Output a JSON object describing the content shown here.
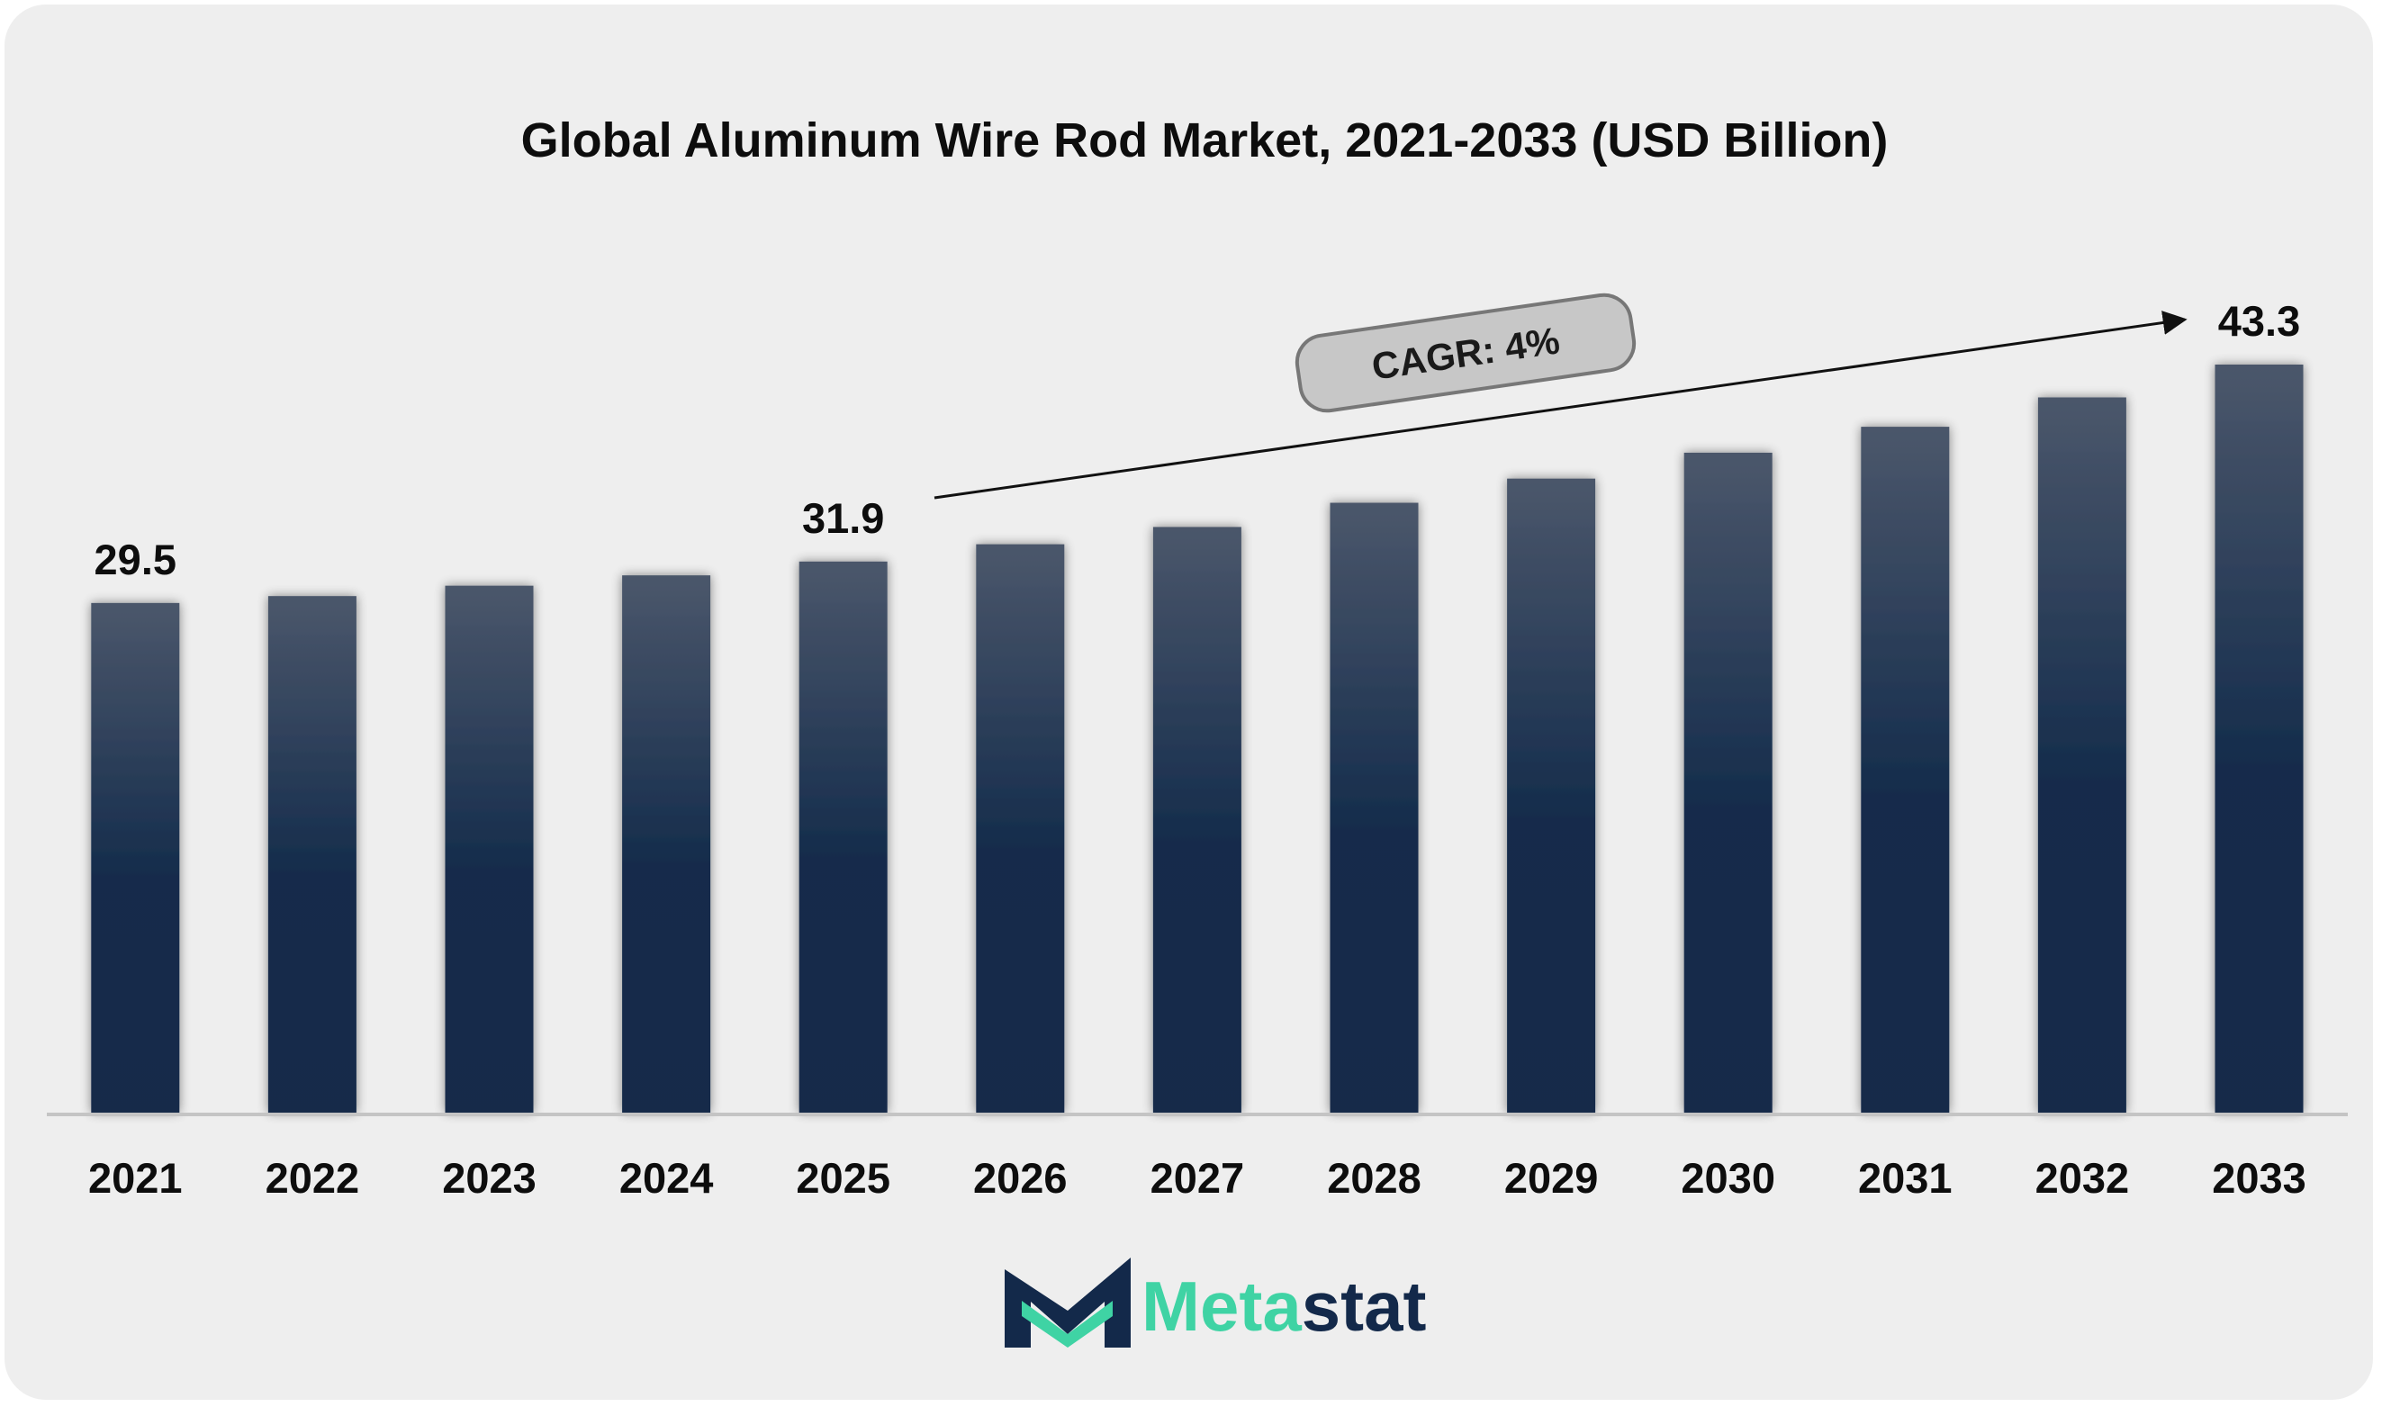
{
  "chart_data": {
    "type": "bar",
    "title": "Global Aluminum Wire Rod Market, 2021-2033 (USD Billion)",
    "xlabel": "",
    "ylabel": "",
    "categories": [
      "2021",
      "2022",
      "2023",
      "2024",
      "2025",
      "2026",
      "2027",
      "2028",
      "2029",
      "2030",
      "2031",
      "2032",
      "2033"
    ],
    "values": [
      29.5,
      29.9,
      30.5,
      31.1,
      31.9,
      32.9,
      33.9,
      35.3,
      36.7,
      38.2,
      39.7,
      41.4,
      43.3
    ],
    "data_labels": [
      {
        "index": 0,
        "text": "29.5"
      },
      {
        "index": 4,
        "text": "31.9"
      },
      {
        "index": 12,
        "text": "43.3"
      }
    ],
    "annotation": {
      "text": "CAGR: 4%",
      "from_index": 4,
      "to_index": 12
    },
    "ylim": [
      0,
      43.3
    ],
    "grid": false,
    "legend": "none",
    "colors": {
      "bar_top": "#4b576b",
      "bar_bottom": "#122a4a",
      "background": "#eeeeee",
      "axis": "#c4c4c4",
      "pill": "#c7c7c7"
    }
  },
  "brand": {
    "logo_mark": "metastat-m-logo",
    "name_part1": "Meta",
    "name_part2": "stat",
    "color_primary": "#3fd3a4",
    "color_secondary": "#13294a"
  }
}
